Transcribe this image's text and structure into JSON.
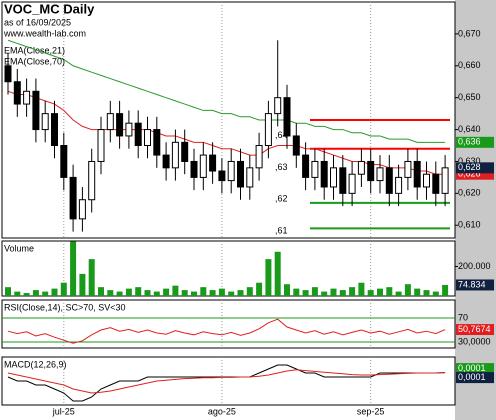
{
  "chart_data": [
    {
      "type": "candlestick",
      "title": "VOC_MC Daily",
      "subtitle": "as of 16/09/2025",
      "source": "www.wealth-lab.com",
      "categories": [
        null,
        null,
        null,
        null,
        null,
        null,
        "jul-25",
        null,
        null,
        null,
        null,
        null,
        null,
        null,
        null,
        null,
        null,
        null,
        null,
        null,
        null,
        null,
        null,
        "ago-25",
        null,
        null,
        null,
        null,
        null,
        null,
        null,
        null,
        null,
        null,
        null,
        null,
        null,
        null,
        null,
        "sep-25",
        null,
        null,
        null,
        null,
        null,
        null,
        null,
        null
      ],
      "open": [
        0.66,
        0.655,
        0.648,
        0.652,
        0.64,
        0.645,
        0.635,
        0.625,
        0.612,
        0.618,
        0.63,
        0.64,
        0.645,
        0.638,
        0.642,
        0.635,
        0.64,
        0.632,
        0.628,
        0.636,
        0.63,
        0.625,
        0.632,
        0.627,
        0.624,
        0.63,
        0.622,
        0.628,
        0.635,
        0.645,
        0.65,
        0.638,
        0.632,
        0.625,
        0.63,
        0.622,
        0.628,
        0.62,
        0.626,
        0.63,
        0.624,
        0.628,
        0.62,
        0.625,
        0.63,
        0.622,
        0.626,
        0.62
      ],
      "high": [
        0.664,
        0.659,
        0.656,
        0.656,
        0.649,
        0.649,
        0.639,
        0.629,
        0.622,
        0.634,
        0.644,
        0.649,
        0.649,
        0.646,
        0.646,
        0.644,
        0.644,
        0.636,
        0.64,
        0.64,
        0.634,
        0.636,
        0.636,
        0.631,
        0.634,
        0.634,
        0.632,
        0.639,
        0.649,
        0.668,
        0.654,
        0.642,
        0.636,
        0.634,
        0.634,
        0.632,
        0.632,
        0.63,
        0.634,
        0.634,
        0.632,
        0.632,
        0.629,
        0.634,
        0.634,
        0.63,
        0.63,
        0.632
      ],
      "low": [
        0.651,
        0.644,
        0.644,
        0.636,
        0.636,
        0.631,
        0.621,
        0.608,
        0.608,
        0.614,
        0.626,
        0.636,
        0.634,
        0.634,
        0.631,
        0.631,
        0.628,
        0.624,
        0.624,
        0.626,
        0.621,
        0.621,
        0.623,
        0.62,
        0.62,
        0.618,
        0.618,
        0.624,
        0.631,
        0.641,
        0.634,
        0.628,
        0.621,
        0.621,
        0.618,
        0.618,
        0.616,
        0.616,
        0.622,
        0.62,
        0.62,
        0.616,
        0.616,
        0.621,
        0.618,
        0.618,
        0.616,
        0.616
      ],
      "close": [
        0.655,
        0.648,
        0.652,
        0.64,
        0.645,
        0.635,
        0.625,
        0.612,
        0.618,
        0.63,
        0.64,
        0.645,
        0.638,
        0.642,
        0.635,
        0.64,
        0.632,
        0.628,
        0.636,
        0.63,
        0.625,
        0.632,
        0.627,
        0.624,
        0.63,
        0.622,
        0.628,
        0.635,
        0.645,
        0.65,
        0.638,
        0.632,
        0.625,
        0.63,
        0.622,
        0.628,
        0.62,
        0.626,
        0.63,
        0.624,
        0.628,
        0.62,
        0.625,
        0.63,
        0.622,
        0.626,
        0.62,
        0.628
      ],
      "series": [
        {
          "name": "EMA(Close,21)",
          "color": "#e02020",
          "values": [
            0.652,
            0.651,
            0.651,
            0.65,
            0.649,
            0.648,
            0.646,
            0.643,
            0.641,
            0.64,
            0.64,
            0.64,
            0.64,
            0.64,
            0.64,
            0.64,
            0.639,
            0.638,
            0.638,
            0.637,
            0.636,
            0.636,
            0.635,
            0.634,
            0.634,
            0.633,
            0.632,
            0.632,
            0.634,
            0.635,
            0.635,
            0.635,
            0.634,
            0.634,
            0.633,
            0.632,
            0.631,
            0.63,
            0.63,
            0.629,
            0.629,
            0.628,
            0.628,
            0.628,
            0.627,
            0.627,
            0.626,
            0.626
          ]
        },
        {
          "name": "EMA(Close,70)",
          "color": "#2a9a2a",
          "values": [
            0.668,
            0.667,
            0.666,
            0.665,
            0.664,
            0.663,
            0.662,
            0.66,
            0.659,
            0.658,
            0.657,
            0.656,
            0.655,
            0.654,
            0.653,
            0.652,
            0.651,
            0.65,
            0.649,
            0.648,
            0.647,
            0.646,
            0.646,
            0.645,
            0.645,
            0.644,
            0.644,
            0.643,
            0.643,
            0.643,
            0.643,
            0.642,
            0.642,
            0.641,
            0.641,
            0.64,
            0.64,
            0.639,
            0.639,
            0.638,
            0.638,
            0.637,
            0.637,
            0.637,
            0.636,
            0.636,
            0.636,
            0.636
          ]
        }
      ],
      "ylim": [
        0.606,
        0.68
      ],
      "yticks": [
        {
          "value": 0.61,
          "label": "0,610"
        },
        {
          "value": 0.62,
          "label": "0,620"
        },
        {
          "value": 0.63,
          "label": "0,630"
        },
        {
          "value": 0.64,
          "label": "0,640"
        },
        {
          "value": 0.65,
          "label": "0,650"
        },
        {
          "value": 0.66,
          "label": "0,660"
        },
        {
          "value": 0.67,
          "label": "0,670"
        }
      ],
      "levels": [
        {
          "value": 0.643,
          "color": "#ff0000"
        },
        {
          "value": 0.634,
          "color": "#ff0000"
        },
        {
          "value": 0.617,
          "color": "#1a9a1a"
        },
        {
          "value": 0.609,
          "color": "#1a9a1a"
        }
      ],
      "annotations": [
        {
          "value": 0.64,
          "label": ",64"
        },
        {
          "value": 0.63,
          "label": ",63"
        },
        {
          "value": 0.62,
          "label": ",62"
        },
        {
          "value": 0.61,
          "label": ",61"
        }
      ],
      "badges": [
        {
          "value": 0.636,
          "label": "0,636",
          "color": "#1a9a1a"
        },
        {
          "value": 0.626,
          "label": "0,626",
          "color": "#e02020"
        },
        {
          "value": 0.628,
          "label": "0,628",
          "color": "#102040"
        }
      ]
    },
    {
      "type": "bar",
      "title": "Volume",
      "color": "#1a9a1a",
      "values": [
        60000,
        30000,
        20000,
        40000,
        30000,
        50000,
        90000,
        370000,
        150000,
        250000,
        60000,
        40000,
        30000,
        50000,
        60000,
        40000,
        30000,
        50000,
        70000,
        40000,
        30000,
        60000,
        40000,
        50000,
        30000,
        40000,
        60000,
        90000,
        250000,
        300000,
        80000,
        50000,
        40000,
        60000,
        30000,
        50000,
        40000,
        60000,
        90000,
        40000,
        50000,
        60000,
        30000,
        80000,
        50000,
        40000,
        30000,
        74834
      ],
      "ylim": [
        0,
        373000
      ],
      "yticks": [
        {
          "value": 200000,
          "label": "200.000"
        }
      ],
      "badges": [
        {
          "value": 74834,
          "label": "74.834",
          "color": "#102040"
        }
      ]
    },
    {
      "type": "line",
      "title": "RSI(Close,14), SC>70, SV<30",
      "color": "#e02020",
      "level_color": "#1a9a1a",
      "values": [
        48,
        44,
        47,
        40,
        44,
        38,
        33,
        28,
        32,
        42,
        50,
        54,
        48,
        51,
        46,
        50,
        45,
        43,
        49,
        45,
        42,
        47,
        44,
        42,
        46,
        41,
        45,
        52,
        62,
        68,
        55,
        50,
        45,
        49,
        43,
        47,
        42,
        46,
        50,
        45,
        48,
        43,
        47,
        51,
        45,
        48,
        44,
        50.7674
      ],
      "ylim": [
        20,
        100
      ],
      "yticks": [
        70,
        {
          "value": 30,
          "label": "30,0000"
        }
      ],
      "badges": [
        {
          "value": 50.7674,
          "label": "50,7674",
          "color": "#e02020"
        }
      ]
    },
    {
      "type": "line",
      "title": "MACD(12,26,9)",
      "series": [
        {
          "color": "#000000",
          "values": [
            -0.001,
            -0.002,
            -0.002,
            -0.003,
            -0.003,
            -0.004,
            -0.005,
            -0.007,
            -0.007,
            -0.006,
            -0.004,
            -0.003,
            -0.002,
            -0.002,
            -0.002,
            -0.001,
            -0.001,
            -0.001,
            -0.001,
            -0.001,
            -0.001,
            -0.001,
            -0.001,
            -0.001,
            -0.001,
            -0.001,
            -0.001,
            0,
            0.001,
            0.002,
            0.002,
            0.001,
            0,
            0,
            -0.001,
            -0.001,
            -0.001,
            -0.001,
            -0.001,
            -0.001,
            0,
            0,
            0,
            0,
            0,
            0,
            0,
            0.0001
          ]
        },
        {
          "color": "#e02020",
          "values": [
            0,
            -0.0005,
            -0.001,
            -0.0015,
            -0.002,
            -0.0025,
            -0.003,
            -0.004,
            -0.0045,
            -0.005,
            -0.0048,
            -0.0045,
            -0.004,
            -0.0035,
            -0.003,
            -0.0025,
            -0.002,
            -0.0018,
            -0.0016,
            -0.0014,
            -0.0013,
            -0.0012,
            -0.0012,
            -0.0011,
            -0.0011,
            -0.001,
            -0.001,
            -0.0008,
            -0.0005,
            0,
            0.0005,
            0.0008,
            0.0006,
            0.0004,
            0.0002,
            0,
            -0.0002,
            -0.0004,
            -0.0005,
            -0.0005,
            -0.0004,
            -0.0003,
            -0.0002,
            -0.0001,
            0,
            0,
            0,
            0.0001
          ]
        }
      ],
      "ylim": [
        -0.008,
        0.004
      ],
      "badges": [
        {
          "value": 0.0001,
          "label": "0,0001",
          "color": "#1a9a1a"
        },
        {
          "value": 0.0001,
          "label": "0,0001",
          "color": "#102040"
        }
      ]
    }
  ]
}
